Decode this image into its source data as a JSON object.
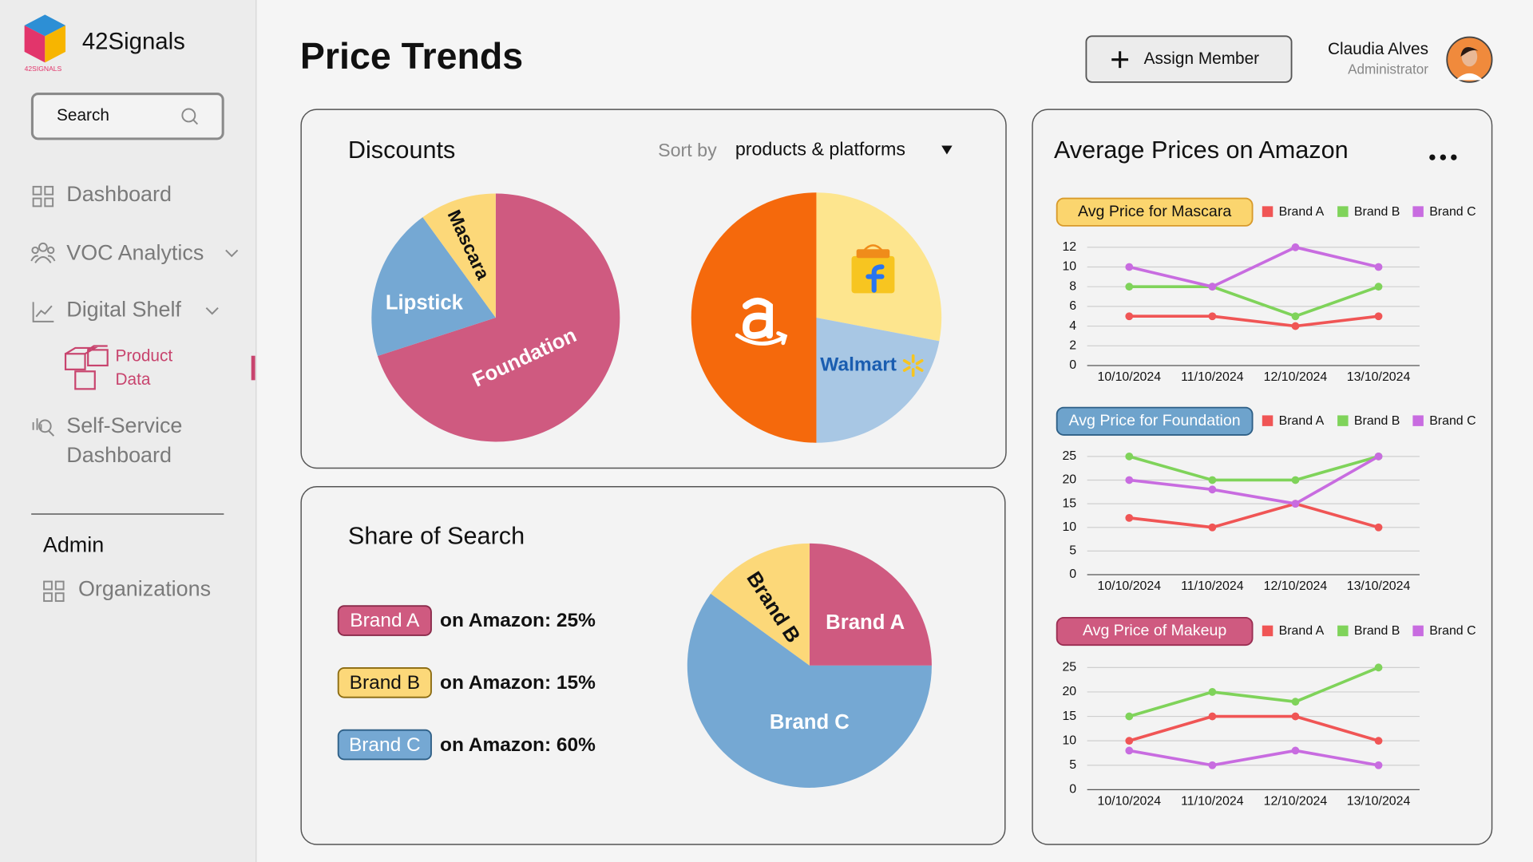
{
  "sidebar": {
    "brand": "42Signals",
    "logo_caption": "42SIGNALS",
    "search": "Search",
    "nav": [
      "Dashboard",
      "VOC Analytics",
      "Digital Shelf"
    ],
    "subnav": [
      "Product",
      "Data"
    ],
    "self_service": [
      "Self-Service",
      "Dashboard"
    ],
    "admin_heading": "Admin",
    "admin_nav": [
      "Organizations"
    ]
  },
  "header": {
    "title": "Price Trends",
    "assign": "Assign Member",
    "user_name": "Claudia Alves",
    "user_role": "Administrator"
  },
  "discounts": {
    "title": "Discounts",
    "sort_label": "Sort by",
    "sort_value": "products & platforms",
    "product_pie": {
      "type": "pie",
      "categories": [
        "Foundation",
        "Lipstick",
        "Mascara"
      ],
      "values": [
        70,
        20,
        10
      ],
      "colors": [
        "#cf5a80",
        "#75a8d3",
        "#fcd879"
      ]
    },
    "platform_pie": {
      "type": "pie",
      "categories": [
        null,
        "Walmart",
        null
      ],
      "values": [
        28,
        22,
        50
      ],
      "colors": [
        "#fde58e",
        "#a8c7e4",
        "#f5690c"
      ]
    }
  },
  "share_of_search": {
    "title": "Share of Search",
    "pie": {
      "type": "pie",
      "categories": [
        "Brand A",
        "Brand B",
        "Brand C"
      ],
      "values": [
        25,
        15,
        60
      ],
      "value_labels": [
        "on Amazon: 25%",
        "on Amazon: 15%",
        "on Amazon: 60%"
      ],
      "colors": [
        "#cf5a80",
        "#fcd879",
        "#75a8d3"
      ]
    }
  },
  "avg_prices": {
    "title": "Average Prices on Amazon",
    "charts": [
      {
        "type": "line",
        "title": "Avg Price for Mascara",
        "categories": [
          "10/10/2024",
          "11/10/2024",
          "12/10/2024",
          "13/10/2024"
        ],
        "ylim": [
          0,
          12
        ],
        "yticks": [
          0,
          2,
          4,
          6,
          8,
          10,
          12
        ],
        "grid": true,
        "series": [
          {
            "name": "Brand A",
            "color": "#f05555",
            "values": [
              5,
              5,
              4,
              5
            ]
          },
          {
            "name": "Brand B",
            "color": "#7fd35a",
            "values": [
              8,
              8,
              5,
              8
            ]
          },
          {
            "name": "Brand C",
            "color": "#c86ce0",
            "values": [
              10,
              8,
              12,
              10
            ]
          }
        ]
      },
      {
        "type": "line",
        "title": "Avg Price for Foundation",
        "categories": [
          "10/10/2024",
          "11/10/2024",
          "12/10/2024",
          "13/10/2024"
        ],
        "ylim": [
          0,
          25
        ],
        "yticks": [
          0,
          5,
          10,
          15,
          20,
          25
        ],
        "grid": true,
        "series": [
          {
            "name": "Brand A",
            "color": "#f05555",
            "values": [
              12,
              10,
              15,
              10
            ]
          },
          {
            "name": "Brand B",
            "color": "#7fd35a",
            "values": [
              25,
              20,
              20,
              25
            ]
          },
          {
            "name": "Brand C",
            "color": "#c86ce0",
            "values": [
              20,
              18,
              15,
              25
            ]
          }
        ]
      },
      {
        "type": "line",
        "title": "Avg Price of Makeup",
        "categories": [
          "10/10/2024",
          "11/10/2024",
          "12/10/2024",
          "13/10/2024"
        ],
        "ylim": [
          0,
          25
        ],
        "yticks": [
          0,
          5,
          10,
          15,
          20,
          25
        ],
        "grid": true,
        "series": [
          {
            "name": "Brand A",
            "color": "#f05555",
            "values": [
              10,
              15,
              15,
              10
            ]
          },
          {
            "name": "Brand B",
            "color": "#7fd35a",
            "values": [
              15,
              20,
              18,
              25
            ]
          },
          {
            "name": "Brand C",
            "color": "#c86ce0",
            "values": [
              8,
              5,
              8,
              5
            ]
          }
        ]
      }
    ]
  }
}
